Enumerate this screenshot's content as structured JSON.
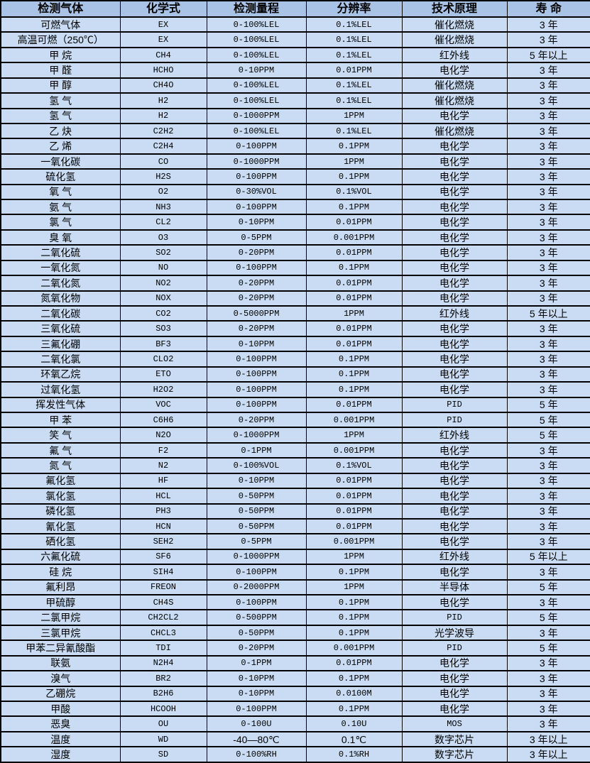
{
  "table": {
    "headers": [
      "检测气体",
      "化学式",
      "检测量程",
      "分辨率",
      "技术原理",
      "寿 命"
    ],
    "column_keys": [
      "gas",
      "formula",
      "range",
      "resolution",
      "principle",
      "lifespan"
    ],
    "rows": [
      [
        "可燃气体",
        "EX",
        "0-100%LEL",
        "0.1%LEL",
        "催化燃烧",
        "3 年"
      ],
      [
        "高温可燃（250℃）",
        "EX",
        "0-100%LEL",
        "0.1%LEL",
        "催化燃烧",
        "3 年"
      ],
      [
        "甲 烷",
        "CH4",
        "0-100%LEL",
        "0.1%LEL",
        "红外线",
        "5 年以上"
      ],
      [
        "甲 醛",
        "HCHO",
        "0-10PPM",
        "0.01PPM",
        "电化学",
        "3 年"
      ],
      [
        "甲 醇",
        "CH4O",
        "0-100%LEL",
        "0.1%LEL",
        "催化燃烧",
        "3 年"
      ],
      [
        "氢 气",
        "H2",
        "0-100%LEL",
        "0.1%LEL",
        "催化燃烧",
        "3 年"
      ],
      [
        "氢 气",
        "H2",
        "0-1000PPM",
        "1PPM",
        "电化学",
        "3 年"
      ],
      [
        "乙 炔",
        "C2H2",
        "0-100%LEL",
        "0.1%LEL",
        "催化燃烧",
        "3 年"
      ],
      [
        "乙 烯",
        "C2H4",
        "0-100PPM",
        "0.1PPM",
        "电化学",
        "3 年"
      ],
      [
        "一氧化碳",
        "CO",
        "0-1000PPM",
        "1PPM",
        "电化学",
        "3 年"
      ],
      [
        "硫化氢",
        "H2S",
        "0-100PPM",
        "0.1PPM",
        "电化学",
        "3 年"
      ],
      [
        "氧 气",
        "O2",
        "0-30%VOL",
        "0.1%VOL",
        "电化学",
        "3 年"
      ],
      [
        "氨 气",
        "NH3",
        "0-100PPM",
        "0.1PPM",
        "电化学",
        "3 年"
      ],
      [
        "氯 气",
        "CL2",
        "0-10PPM",
        "0.01PPM",
        "电化学",
        "3 年"
      ],
      [
        "臭 氧",
        "O3",
        "0-5PPM",
        "0.001PPM",
        "电化学",
        "3 年"
      ],
      [
        "二氧化硫",
        "SO2",
        "0-20PPM",
        "0.01PPM",
        "电化学",
        "3 年"
      ],
      [
        "一氧化氮",
        "NO",
        "0-100PPM",
        "0.1PPM",
        "电化学",
        "3 年"
      ],
      [
        "二氧化氮",
        "NO2",
        "0-20PPM",
        "0.01PPM",
        "电化学",
        "3 年"
      ],
      [
        "氮氧化物",
        "NOX",
        "0-20PPM",
        "0.01PPM",
        "电化学",
        "3 年"
      ],
      [
        "二氧化碳",
        "CO2",
        "0-5000PPM",
        "1PPM",
        "红外线",
        "5 年以上"
      ],
      [
        "三氧化硫",
        "SO3",
        "0-20PPM",
        "0.01PPM",
        "电化学",
        "3 年"
      ],
      [
        "三氟化硼",
        "BF3",
        "0-10PPM",
        "0.01PPM",
        "电化学",
        "3 年"
      ],
      [
        "二氧化氯",
        "CLO2",
        "0-100PPM",
        "0.1PPM",
        "电化学",
        "3 年"
      ],
      [
        "环氧乙烷",
        "ETO",
        "0-100PPM",
        "0.1PPM",
        "电化学",
        "3 年"
      ],
      [
        "过氧化氢",
        "H2O2",
        "0-100PPM",
        "0.1PPM",
        "电化学",
        "3 年"
      ],
      [
        "挥发性气体",
        "VOC",
        "0-100PPM",
        "0.01PPM",
        "PID",
        "5 年"
      ],
      [
        "甲 苯",
        "C6H6",
        "0-20PPM",
        "0.001PPM",
        "PID",
        "5 年"
      ],
      [
        "笑 气",
        "N2O",
        "0-1000PPM",
        "1PPM",
        "红外线",
        "5 年"
      ],
      [
        "氟 气",
        "F2",
        "0-1PPM",
        "0.001PPM",
        "电化学",
        "3 年"
      ],
      [
        "氮 气",
        "N2",
        "0-100%VOL",
        "0.1%VOL",
        "电化学",
        "3 年"
      ],
      [
        "氟化氢",
        "HF",
        "0-10PPM",
        "0.01PPM",
        "电化学",
        "3 年"
      ],
      [
        "氯化氢",
        "HCL",
        "0-50PPM",
        "0.01PPM",
        "电化学",
        "3 年"
      ],
      [
        "磷化氢",
        "PH3",
        "0-50PPM",
        "0.01PPM",
        "电化学",
        "3 年"
      ],
      [
        "氰化氢",
        "HCN",
        "0-50PPM",
        "0.01PPM",
        "电化学",
        "3 年"
      ],
      [
        "硒化氢",
        "SEH2",
        "0-5PPM",
        "0.001PPM",
        "电化学",
        "3 年"
      ],
      [
        "六氟化硫",
        "SF6",
        "0-1000PPM",
        "1PPM",
        "红外线",
        "5 年以上"
      ],
      [
        "硅 烷",
        "SIH4",
        "0-100PPM",
        "0.1PPM",
        "电化学",
        "3 年"
      ],
      [
        "氟利昂",
        "FREON",
        "0-2000PPM",
        "1PPM",
        "半导体",
        "5 年"
      ],
      [
        "甲硫醇",
        "CH4S",
        "0-100PPM",
        "0.1PPM",
        "电化学",
        "3 年"
      ],
      [
        "二氯甲烷",
        "CH2CL2",
        "0-500PPM",
        "0.1PPM",
        "PID",
        "5 年"
      ],
      [
        "三氯甲烷",
        "CHCL3",
        "0-50PPM",
        "0.1PPM",
        "光学波导",
        "3 年"
      ],
      [
        "甲苯二异氰酸酯",
        "TDI",
        "0-20PPM",
        "0.001PPM",
        "PID",
        "5 年"
      ],
      [
        "联氨",
        "N2H4",
        "0-1PPM",
        "0.01PPM",
        "电化学",
        "3 年"
      ],
      [
        "溴气",
        "BR2",
        "0-10PPM",
        "0.1PPM",
        "电化学",
        "3 年"
      ],
      [
        "乙硼烷",
        "B2H6",
        "0-10PPM",
        "0.0100M",
        "电化学",
        "3 年"
      ],
      [
        "甲酸",
        "HCOOH",
        "0-100PPM",
        "0.1PPM",
        "电化学",
        "3 年"
      ],
      [
        "恶臭",
        "OU",
        "0-100U",
        "0.10U",
        "MOS",
        "3 年"
      ],
      [
        "温度",
        "WD",
        "-40—80℃",
        "0.1℃",
        "数字芯片",
        "3 年以上"
      ],
      [
        "湿度",
        "SD",
        "0-100%RH",
        "0.1%RH",
        "数字芯片",
        "3 年以上"
      ]
    ]
  },
  "colors": {
    "header_bg": "#a9c3e6",
    "row_bg": "#c9dcf3",
    "border": "#000000",
    "text": "#000000"
  }
}
